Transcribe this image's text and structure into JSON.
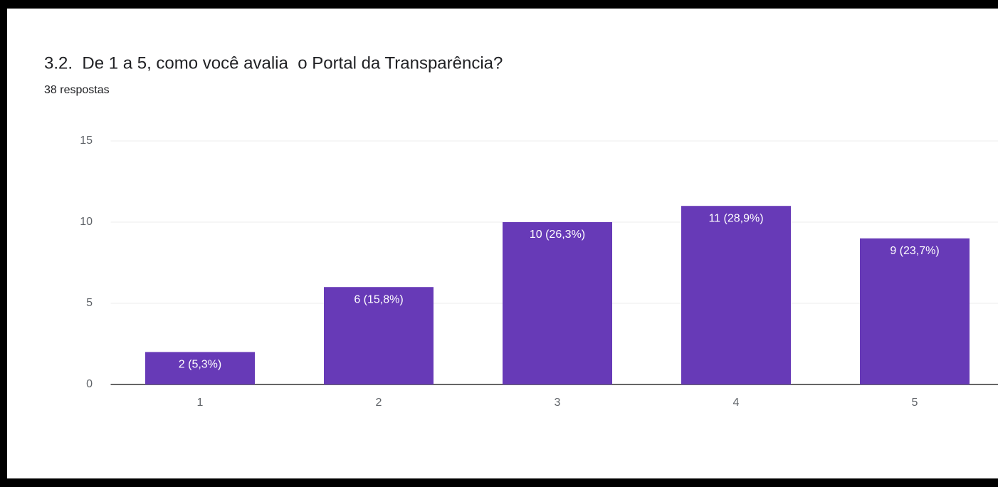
{
  "chart_data": {
    "type": "bar",
    "title": "3.2.  De 1 a 5, como você avalia  o Portal da Transparência?",
    "subtitle": "38 respostas",
    "categories": [
      "1",
      "2",
      "3",
      "4",
      "5"
    ],
    "values": [
      2,
      6,
      10,
      11,
      9
    ],
    "value_labels": [
      "2 (5,3%)",
      "6 (15,8%)",
      "10 (26,3%)",
      "11 (28,9%)",
      "9 (23,7%)"
    ],
    "color": "#673ab7",
    "ylim": [
      0,
      15
    ],
    "yticks": [
      0,
      5,
      10,
      15
    ],
    "grid": true
  }
}
